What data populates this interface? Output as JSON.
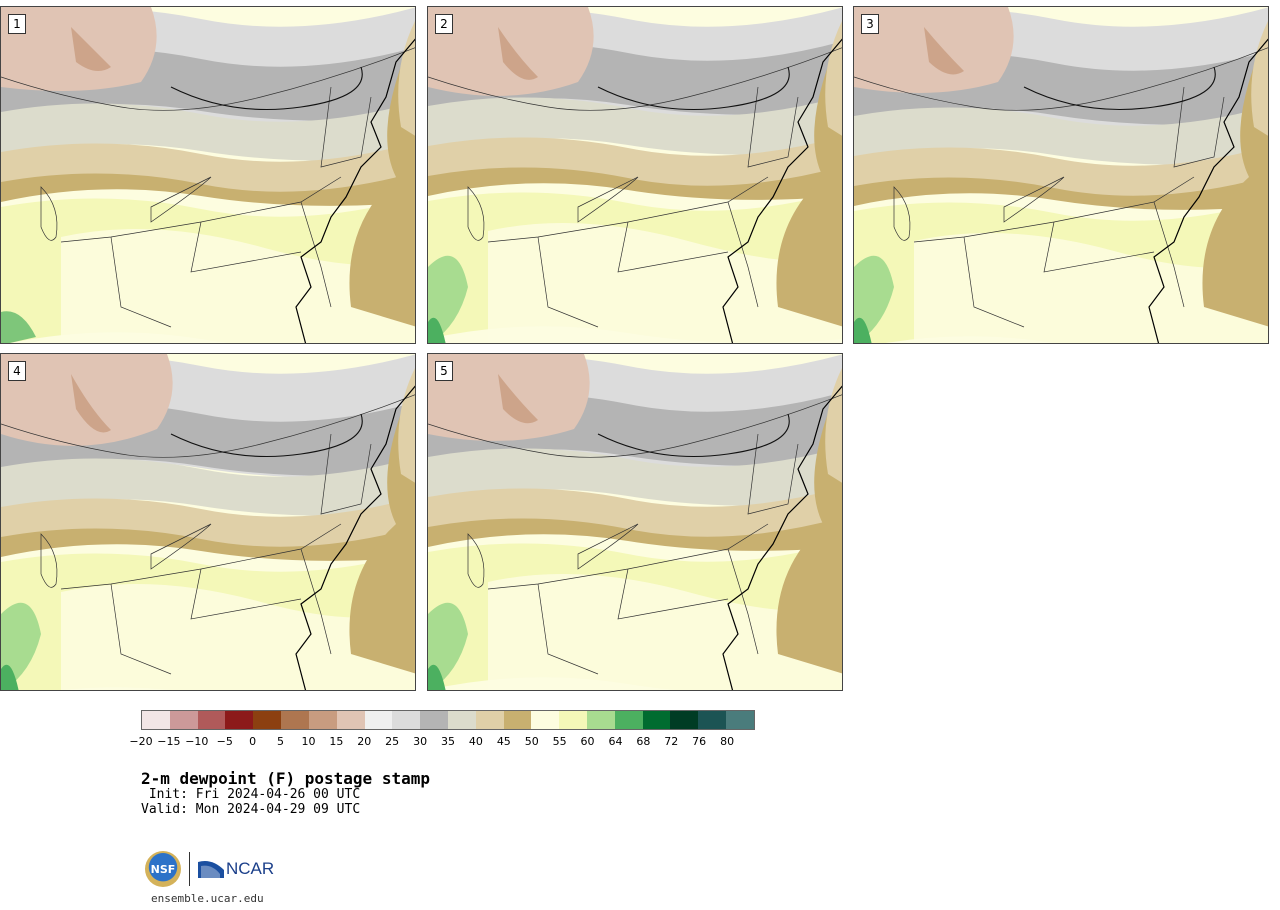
{
  "panels": [
    {
      "label": "1"
    },
    {
      "label": "2"
    },
    {
      "label": "3"
    },
    {
      "label": "4"
    },
    {
      "label": "5"
    }
  ],
  "colorbar": {
    "colors": [
      "#f2e6e6",
      "#cc9999",
      "#b05a5a",
      "#8c1a1a",
      "#8c4010",
      "#ae7650",
      "#c89c80",
      "#e0c4b4",
      "#f0f0f0",
      "#dcdcdc",
      "#b4b4b4",
      "#dcdccc",
      "#e0d0a8",
      "#c8b070",
      "#fdfde0",
      "#f4f8b8",
      "#a8dc90",
      "#4cb060",
      "#006c30",
      "#003c24",
      "#1c5454",
      "#4a7c7c"
    ],
    "ticks": [
      "−20",
      "−15",
      "−10",
      "−5",
      "0",
      "5",
      "10",
      "15",
      "20",
      "25",
      "30",
      "35",
      "40",
      "45",
      "50",
      "55",
      "60",
      "64",
      "68",
      "72",
      "76",
      "80"
    ]
  },
  "title": {
    "main": "2-m dewpoint (F) postage stamp",
    "init": " Init: Fri 2024-04-26 00 UTC",
    "valid": "Valid: Mon 2024-04-29 09 UTC"
  },
  "logos": {
    "nsf_text": "NSF",
    "ncar_text": "NCAR",
    "url": "ensemble.ucar.edu"
  }
}
